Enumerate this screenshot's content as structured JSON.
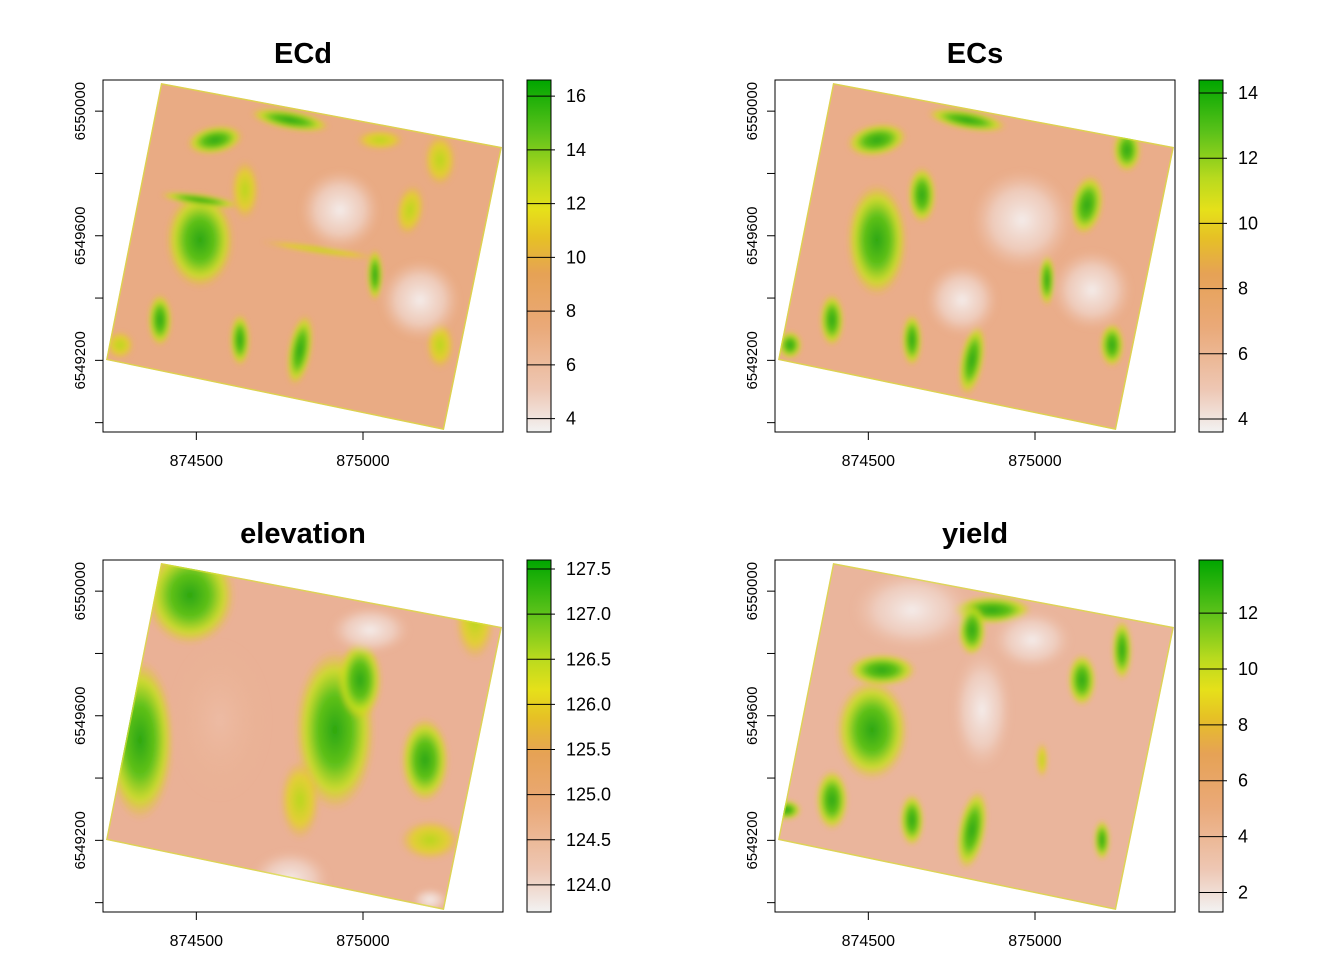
{
  "figure": {
    "x_ticks": [
      {
        "value": 874500,
        "label": "874500"
      },
      {
        "value": 875000,
        "label": "875000"
      }
    ],
    "y_ticks": [
      {
        "value": 6550000,
        "label": "6550000"
      },
      {
        "value": 6549600,
        "label": "6549600"
      },
      {
        "value": 6549200,
        "label": "6549200"
      }
    ],
    "x_range": [
      874220,
      875420
    ],
    "y_range": [
      6548970,
      6550100
    ],
    "palette": [
      "#f2f2f2",
      "#eeb99f",
      "#eaa978",
      "#e6a255",
      "#e6c026",
      "#c7e020",
      "#9ad81d",
      "#4cc319",
      "#2ca70f",
      "#00a600"
    ],
    "panels": [
      {
        "title": "ECd",
        "legend": {
          "min": 3.5,
          "max": 16.6,
          "ticks": [
            4,
            6,
            8,
            10,
            12,
            14,
            16
          ],
          "labels": [
            "4",
            "6",
            "8",
            "10",
            "12",
            "14",
            "16"
          ]
        }
      },
      {
        "title": "ECs",
        "legend": {
          "min": 3.6,
          "max": 14.4,
          "ticks": [
            4,
            6,
            8,
            10,
            12,
            14
          ],
          "labels": [
            "4",
            "6",
            "8",
            "10",
            "12",
            "14"
          ]
        }
      },
      {
        "title": "elevation",
        "legend": {
          "min": 123.7,
          "max": 127.6,
          "ticks": [
            124.0,
            124.5,
            125.0,
            125.5,
            126.0,
            126.5,
            127.0,
            127.5
          ],
          "labels": [
            "124.0",
            "124.5",
            "125.0",
            "125.5",
            "126.0",
            "126.5",
            "127.0",
            "127.5"
          ]
        }
      },
      {
        "title": "yield",
        "legend": {
          "min": 1.3,
          "max": 13.9,
          "ticks": [
            2,
            4,
            6,
            8,
            10,
            12
          ],
          "labels": [
            "2",
            "4",
            "6",
            "8",
            "10",
            "12"
          ]
        }
      }
    ]
  }
}
